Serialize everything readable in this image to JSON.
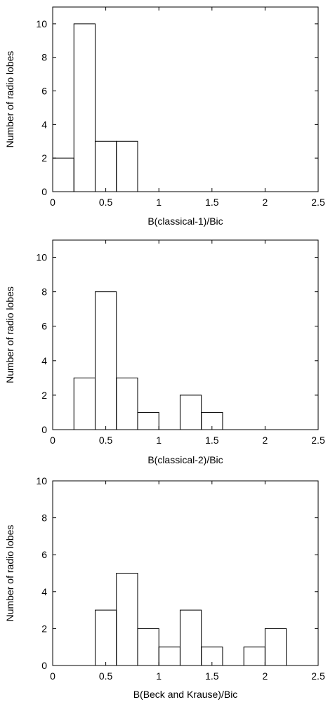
{
  "chart_data": [
    {
      "type": "bar",
      "histogram": true,
      "bin_width": 0.2,
      "xlabel": "B(classical-1)/Bic",
      "ylabel": "Number of radio lobes",
      "xlim": [
        0,
        2.5
      ],
      "ylim": [
        0,
        11
      ],
      "xticks": [
        "0",
        "0.5",
        "1",
        "1.5",
        "2",
        "2.5"
      ],
      "yticks": [
        "0",
        "2",
        "4",
        "6",
        "8",
        "10"
      ],
      "bins": [
        {
          "x0": 0.0,
          "x1": 0.2,
          "value": 2
        },
        {
          "x0": 0.2,
          "x1": 0.4,
          "value": 10
        },
        {
          "x0": 0.4,
          "x1": 0.6,
          "value": 3
        },
        {
          "x0": 0.6,
          "x1": 0.8,
          "value": 3
        }
      ]
    },
    {
      "type": "bar",
      "histogram": true,
      "bin_width": 0.2,
      "xlabel": "B(classical-2)/Bic",
      "ylabel": "Number of radio lobes",
      "xlim": [
        0,
        2.5
      ],
      "ylim": [
        0,
        11
      ],
      "xticks": [
        "0",
        "0.5",
        "1",
        "1.5",
        "2",
        "2.5"
      ],
      "yticks": [
        "0",
        "2",
        "4",
        "6",
        "8",
        "10"
      ],
      "bins": [
        {
          "x0": 0.2,
          "x1": 0.4,
          "value": 3
        },
        {
          "x0": 0.4,
          "x1": 0.6,
          "value": 8
        },
        {
          "x0": 0.6,
          "x1": 0.8,
          "value": 3
        },
        {
          "x0": 0.8,
          "x1": 1.0,
          "value": 1
        },
        {
          "x0": 1.2,
          "x1": 1.4,
          "value": 2
        },
        {
          "x0": 1.4,
          "x1": 1.6,
          "value": 1
        }
      ]
    },
    {
      "type": "bar",
      "histogram": true,
      "bin_width": 0.2,
      "xlabel": "B(Beck and Krause)/Bic",
      "ylabel": "Number of radio lobes",
      "xlim": [
        0,
        2.5
      ],
      "ylim": [
        0,
        10
      ],
      "xticks": [
        "0",
        "0.5",
        "1",
        "1.5",
        "2",
        "2.5"
      ],
      "yticks": [
        "0",
        "2",
        "4",
        "6",
        "8",
        "10"
      ],
      "bins": [
        {
          "x0": 0.4,
          "x1": 0.6,
          "value": 3
        },
        {
          "x0": 0.6,
          "x1": 0.8,
          "value": 5
        },
        {
          "x0": 0.8,
          "x1": 1.0,
          "value": 2
        },
        {
          "x0": 1.0,
          "x1": 1.2,
          "value": 1
        },
        {
          "x0": 1.2,
          "x1": 1.4,
          "value": 3
        },
        {
          "x0": 1.4,
          "x1": 1.6,
          "value": 1
        },
        {
          "x0": 1.8,
          "x1": 2.0,
          "value": 1
        },
        {
          "x0": 2.0,
          "x1": 2.2,
          "value": 2
        }
      ]
    }
  ]
}
